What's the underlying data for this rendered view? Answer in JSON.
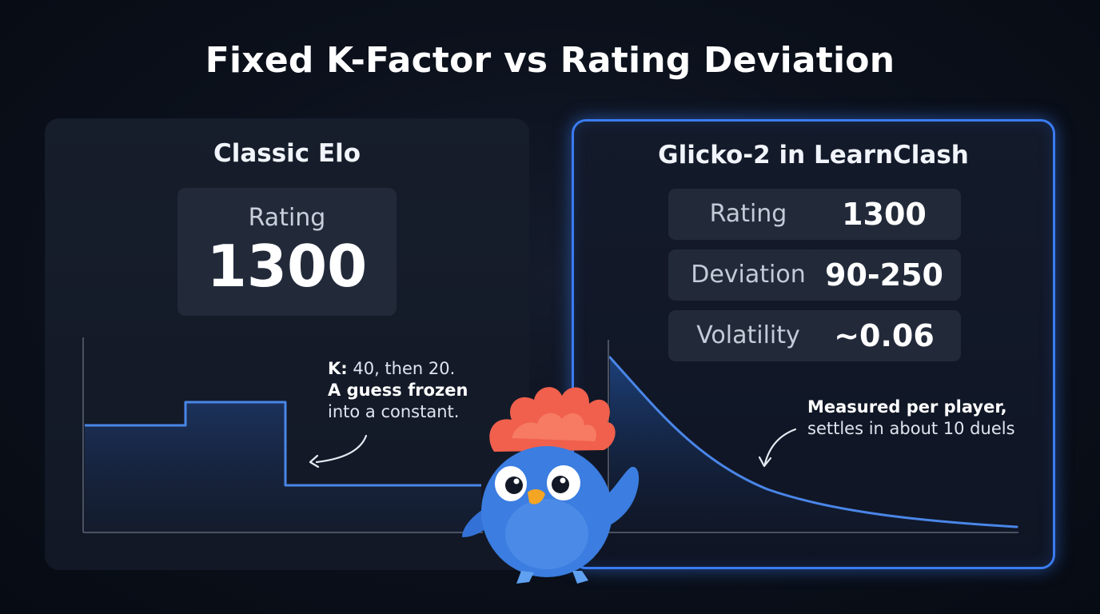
{
  "title": "Fixed K-Factor vs Rating Deviation",
  "left_panel": {
    "title": "Classic Elo",
    "rating_label": "Rating",
    "rating_value": "1300",
    "annotation": {
      "line1_bold": "K:",
      "line1_rest": " 40, then 20.",
      "line2": "A guess frozen",
      "line3": "into a constant."
    }
  },
  "right_panel": {
    "title": "Glicko-2 in LearnClash",
    "stats": [
      {
        "label": "Rating",
        "value": "1300"
      },
      {
        "label": "Deviation",
        "value": "90-250"
      },
      {
        "label": "Volatility",
        "value": "~0.06"
      }
    ],
    "annotation": {
      "line1": "Measured per player,",
      "line2": "settles in about 10 duels"
    }
  },
  "colors": {
    "accent": "#3a7cf2",
    "line": "#4a86e8",
    "mascot_body": "#3b7de0",
    "mascot_crest": "#f0604c"
  },
  "mascot": {
    "icon": "bird-mascot-icon"
  }
}
